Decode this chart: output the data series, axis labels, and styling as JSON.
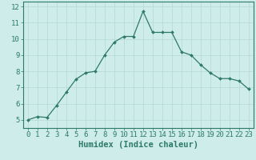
{
  "x": [
    0,
    1,
    2,
    3,
    4,
    5,
    6,
    7,
    8,
    9,
    10,
    11,
    12,
    13,
    14,
    15,
    16,
    17,
    18,
    19,
    20,
    21,
    22,
    23
  ],
  "y": [
    5.0,
    5.2,
    5.15,
    5.9,
    6.7,
    7.5,
    7.9,
    8.0,
    9.0,
    9.8,
    10.15,
    10.15,
    11.7,
    10.4,
    10.4,
    10.4,
    9.2,
    9.0,
    8.4,
    7.9,
    7.55,
    7.55,
    7.4,
    6.9
  ],
  "line_color": "#2d7a6a",
  "marker": "D",
  "marker_size": 2.0,
  "background_color": "#ceecea",
  "grid_color": "#b8dbd9",
  "axis_color": "#2d7a6a",
  "xlabel": "Humidex (Indice chaleur)",
  "ylim": [
    4.5,
    12.3
  ],
  "xlim": [
    -0.5,
    23.5
  ],
  "yticks": [
    5,
    6,
    7,
    8,
    9,
    10,
    11,
    12
  ],
  "xticks": [
    0,
    1,
    2,
    3,
    4,
    5,
    6,
    7,
    8,
    9,
    10,
    11,
    12,
    13,
    14,
    15,
    16,
    17,
    18,
    19,
    20,
    21,
    22,
    23
  ],
  "tick_label_color": "#2d7a6a",
  "xlabel_fontsize": 7.5,
  "tick_fontsize": 6.5
}
